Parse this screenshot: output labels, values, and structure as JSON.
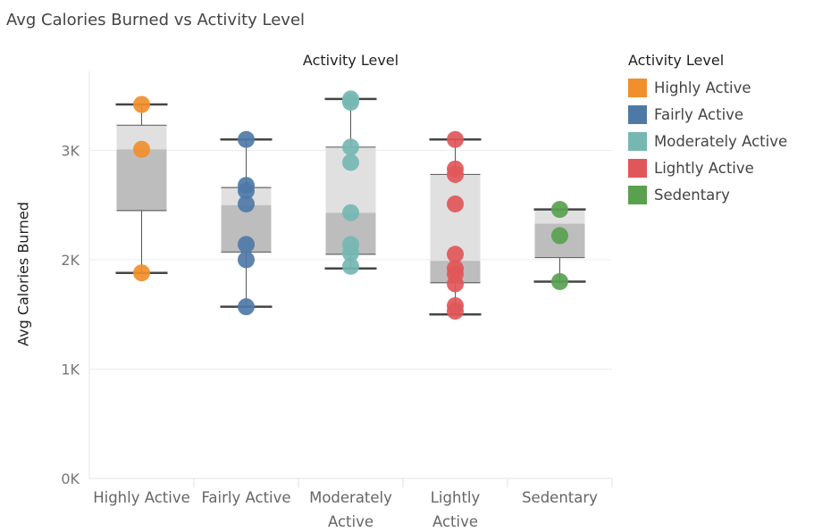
{
  "title": "Avg Calories Burned vs Activity Level",
  "chart_data": {
    "type": "scatter",
    "subtype": "box-and-whisker with jittered points",
    "column_header": "Activity Level",
    "ylabel": "Avg Calories Burned",
    "ylim": [
      0,
      3500
    ],
    "y_ticks": [
      {
        "value": 0,
        "label": "0K"
      },
      {
        "value": 1000,
        "label": "1K"
      },
      {
        "value": 2000,
        "label": "2K"
      },
      {
        "value": 3000,
        "label": "3K"
      }
    ],
    "gridlines": true,
    "legend_position": "right",
    "legend_title": "Activity Level",
    "categories": [
      {
        "label": "Highly Active",
        "axis_lines": [
          "Highly Active"
        ],
        "color": "#f28e2b",
        "box": {
          "min": 1880,
          "q1": 2450,
          "median": 3010,
          "q3": 3230,
          "max": 3420
        },
        "points": [
          3420,
          3010,
          1880
        ]
      },
      {
        "label": "Fairly Active",
        "axis_lines": [
          "Fairly Active"
        ],
        "color": "#4e79a7",
        "box": {
          "min": 1570,
          "q1": 2070,
          "median": 2500,
          "q3": 2660,
          "max": 3100
        },
        "points": [
          3100,
          2680,
          2630,
          2510,
          2140,
          2000,
          1570
        ]
      },
      {
        "label": "Moderately Active",
        "axis_lines": [
          "Moderately",
          "Active"
        ],
        "color": "#76b7b2",
        "box": {
          "min": 1920,
          "q1": 2050,
          "median": 2430,
          "q3": 3030,
          "max": 3470
        },
        "points": [
          3470,
          3440,
          3030,
          2890,
          2430,
          2140,
          2060,
          1940
        ]
      },
      {
        "label": "Lightly Active",
        "axis_lines": [
          "Lightly",
          "Active"
        ],
        "color": "#e15759",
        "box": {
          "min": 1500,
          "q1": 1790,
          "median": 1990,
          "q3": 2780,
          "max": 3100
        },
        "points": [
          3100,
          2830,
          2780,
          2510,
          2050,
          1920,
          1870,
          1780,
          1580,
          1530
        ]
      },
      {
        "label": "Sedentary",
        "axis_lines": [
          "Sedentary"
        ],
        "color": "#59a14f",
        "box": {
          "min": 1800,
          "q1": 2020,
          "median": 2330,
          "q3": 2460,
          "max": 2460
        },
        "points": [
          2460,
          2220,
          1800
        ]
      }
    ]
  }
}
